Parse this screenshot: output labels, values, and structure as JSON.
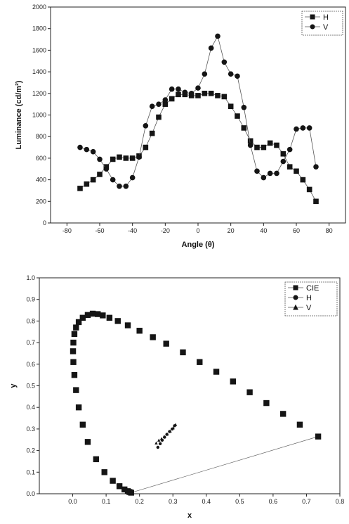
{
  "chart_data": [
    {
      "type": "line",
      "xlabel": "Angle (θ)",
      "ylabel": "Luminance (cd/m²)",
      "xlim": [
        -90,
        90
      ],
      "ylim": [
        0,
        2000
      ],
      "xticks": [
        "-80",
        "-60",
        "-40",
        "-20",
        "0",
        "20",
        "40",
        "60",
        "80"
      ],
      "yticks": [
        "0",
        "200",
        "400",
        "600",
        "800",
        "1000",
        "1200",
        "1400",
        "1600",
        "1800",
        "2000"
      ],
      "legend_position": "top-right",
      "series": [
        {
          "name": "H",
          "marker": "square",
          "x": [
            -72,
            -68,
            -64,
            -60,
            -56,
            -52,
            -48,
            -44,
            -40,
            -36,
            -32,
            -28,
            -24,
            -20,
            -16,
            -12,
            -8,
            -4,
            0,
            4,
            8,
            12,
            16,
            20,
            24,
            28,
            32,
            36,
            40,
            44,
            48,
            52,
            56,
            60,
            64,
            68,
            72
          ],
          "y": [
            320,
            360,
            400,
            450,
            520,
            590,
            610,
            600,
            600,
            620,
            700,
            830,
            980,
            1100,
            1150,
            1190,
            1190,
            1180,
            1180,
            1200,
            1200,
            1180,
            1170,
            1080,
            990,
            880,
            760,
            700,
            700,
            740,
            720,
            640,
            520,
            480,
            400,
            310,
            200
          ]
        },
        {
          "name": "V",
          "marker": "circle",
          "x": [
            -72,
            -68,
            -64,
            -60,
            -56,
            -52,
            -48,
            -44,
            -40,
            -36,
            -32,
            -28,
            -24,
            -20,
            -16,
            -12,
            -8,
            -4,
            0,
            4,
            8,
            12,
            16,
            20,
            24,
            28,
            32,
            36,
            40,
            44,
            48,
            52,
            56,
            60,
            64,
            68,
            72
          ],
          "y": [
            700,
            680,
            660,
            590,
            500,
            400,
            340,
            340,
            420,
            610,
            900,
            1080,
            1100,
            1140,
            1240,
            1240,
            1210,
            1200,
            1250,
            1380,
            1620,
            1730,
            1490,
            1380,
            1360,
            1070,
            720,
            480,
            420,
            460,
            460,
            570,
            680,
            870,
            880,
            880,
            520
          ]
        }
      ]
    },
    {
      "type": "scatter",
      "xlabel": "x",
      "ylabel": "y",
      "xlim": [
        -0.1,
        0.8
      ],
      "ylim": [
        0,
        1.0
      ],
      "xticks": [
        "0.0",
        "0.1",
        "0.2",
        "0.3",
        "0.4",
        "0.5",
        "0.6",
        "0.7",
        "0.8"
      ],
      "yticks": [
        "0.0",
        "0.1",
        "0.2",
        "0.3",
        "0.4",
        "0.5",
        "0.6",
        "0.7",
        "0.8",
        "0.9",
        "1.0"
      ],
      "legend_position": "top-right",
      "series": [
        {
          "name": "CIE",
          "marker": "square",
          "x": [
            0.175,
            0.17,
            0.165,
            0.155,
            0.14,
            0.12,
            0.095,
            0.07,
            0.045,
            0.03,
            0.018,
            0.01,
            0.005,
            0.002,
            0.001,
            0.002,
            0.005,
            0.01,
            0.018,
            0.03,
            0.045,
            0.06,
            0.075,
            0.09,
            0.11,
            0.135,
            0.165,
            0.2,
            0.24,
            0.28,
            0.33,
            0.38,
            0.43,
            0.48,
            0.53,
            0.58,
            0.63,
            0.68,
            0.735
          ],
          "y": [
            0.005,
            0.008,
            0.012,
            0.02,
            0.035,
            0.06,
            0.1,
            0.16,
            0.24,
            0.32,
            0.4,
            0.48,
            0.55,
            0.61,
            0.66,
            0.7,
            0.74,
            0.77,
            0.795,
            0.815,
            0.828,
            0.834,
            0.832,
            0.826,
            0.815,
            0.8,
            0.78,
            0.755,
            0.725,
            0.695,
            0.655,
            0.61,
            0.565,
            0.52,
            0.47,
            0.42,
            0.37,
            0.32,
            0.265
          ]
        },
        {
          "name": "H",
          "marker": "circle",
          "x": [
            0.255,
            0.262,
            0.268,
            0.275,
            0.282,
            0.29,
            0.298,
            0.305
          ],
          "y": [
            0.215,
            0.232,
            0.248,
            0.262,
            0.275,
            0.288,
            0.3,
            0.315
          ]
        },
        {
          "name": "V",
          "marker": "triangle",
          "x": [
            0.25,
            0.258,
            0.266,
            0.274,
            0.283,
            0.292,
            0.301,
            0.308
          ],
          "y": [
            0.235,
            0.248,
            0.255,
            0.265,
            0.276,
            0.29,
            0.305,
            0.32
          ]
        }
      ]
    }
  ]
}
